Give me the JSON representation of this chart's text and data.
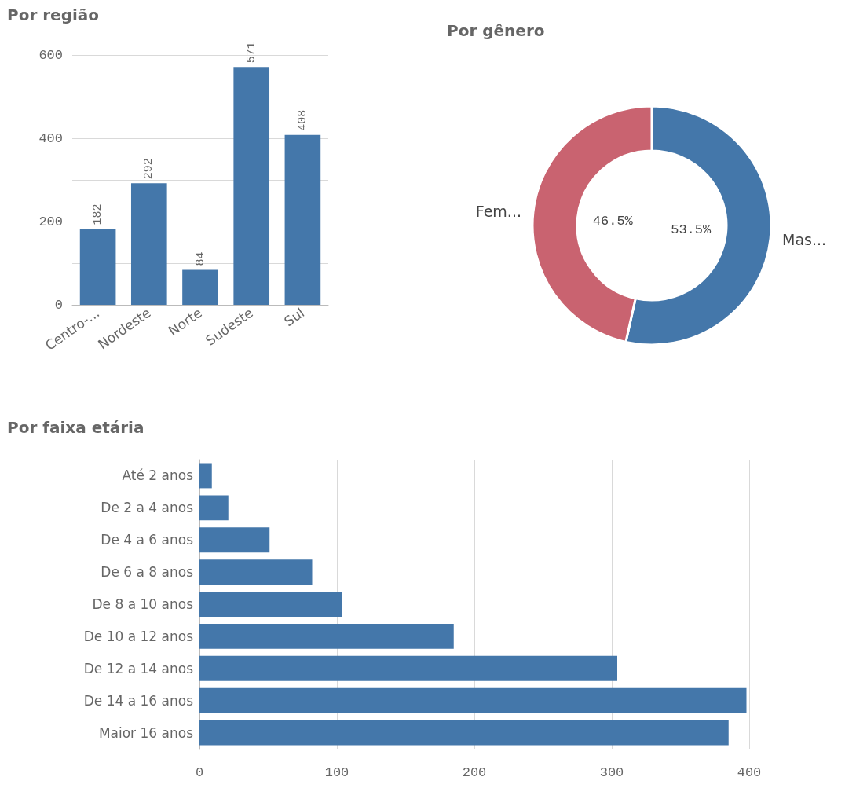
{
  "chart_data": [
    {
      "type": "bar",
      "title": "Por região",
      "categories": [
        "Centro-...",
        "Nordeste",
        "Norte",
        "Sudeste",
        "Sul"
      ],
      "values": [
        182,
        292,
        84,
        571,
        408
      ],
      "color": "#4477aa",
      "ylim": [
        0,
        600
      ],
      "yticks": [
        0,
        {
          "value": 100,
          "label": null
        },
        200,
        {
          "value": 300,
          "label": null
        },
        400,
        {
          "value": 500,
          "label": null
        },
        600
      ],
      "grid": "y",
      "data_labels": true
    },
    {
      "type": "donut",
      "title": "Por gênero",
      "categories": [
        "Mas...",
        "Fem..."
      ],
      "values": [
        53.5,
        46.5
      ],
      "colors": [
        "#4477aa",
        "#c96370"
      ],
      "value_labels": [
        "53.5%",
        "46.5%"
      ]
    },
    {
      "type": "bar",
      "orientation": "horizontal",
      "title": "Por faixa etária",
      "categories": [
        "Até 2 anos",
        "De 2 a 4 anos",
        "De 4 a 6 anos",
        "De 6 a 8 anos",
        "De 8 a 10 anos",
        "De 10 a 12 anos",
        "De 12 a 14 anos",
        "De 14 a 16 anos",
        "Maior 16 anos"
      ],
      "values": [
        9,
        21,
        51,
        82,
        104,
        185,
        304,
        398,
        385
      ],
      "color": "#4477aa",
      "xlim": [
        0,
        400
      ],
      "xticks": [
        0,
        100,
        200,
        300,
        400
      ],
      "grid": "x"
    }
  ]
}
